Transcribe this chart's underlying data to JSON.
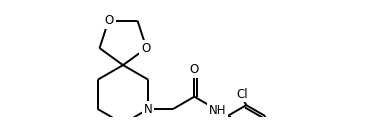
{
  "background_color": "#ffffff",
  "line_color": "#000000",
  "line_width": 1.4,
  "font_size": 8.5,
  "figsize": [
    3.91,
    1.32
  ],
  "dpi": 100,
  "xlim": [
    0,
    391
  ],
  "ylim": [
    0,
    132
  ],
  "spiro_x": 95,
  "spiro_y": 72,
  "ring6_r": 38,
  "ring5_r": 30
}
